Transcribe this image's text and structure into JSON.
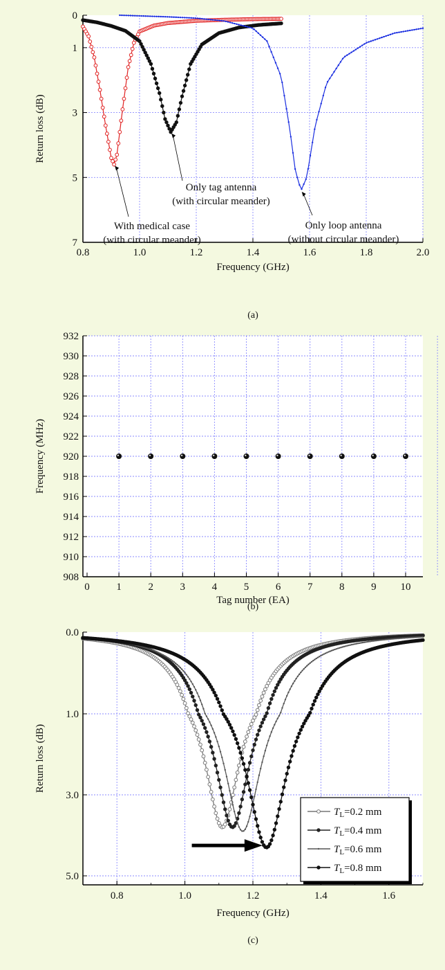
{
  "chart_data": [
    {
      "type": "line",
      "caption": "(a)",
      "xlabel": "Frequency (GHz)",
      "ylabel": "Return loss (dB)",
      "xlim": [
        0.8,
        2.0
      ],
      "ylim": [
        0,
        7
      ],
      "y_reversed": true,
      "grid": true,
      "x_ticks": [
        "0.8",
        "1.0",
        "1.2",
        "1.4",
        "1.6",
        "1.8",
        "2.0"
      ],
      "y_ticks": [
        "0",
        "1",
        "3",
        "5",
        "7"
      ],
      "series": [
        {
          "x": [
            0.8,
            0.82,
            0.84,
            0.86,
            0.88,
            0.9,
            0.91,
            0.92,
            0.94,
            0.96,
            0.98,
            1.0,
            1.05,
            1.1,
            1.2,
            1.3,
            1.4,
            1.5
          ],
          "y": [
            0.35,
            0.65,
            1.3,
            2.3,
            3.4,
            4.4,
            4.6,
            4.3,
            2.9,
            1.6,
            0.85,
            0.5,
            0.32,
            0.24,
            0.17,
            0.14,
            0.12,
            0.11
          ],
          "color": "#e02020",
          "marker": "open-circle"
        },
        {
          "x": [
            0.8,
            0.85,
            0.9,
            0.95,
            1.0,
            1.04,
            1.07,
            1.09,
            1.11,
            1.13,
            1.15,
            1.18,
            1.22,
            1.28,
            1.35,
            1.42,
            1.5
          ],
          "y": [
            0.15,
            0.22,
            0.33,
            0.48,
            0.8,
            1.5,
            2.4,
            3.2,
            3.6,
            3.3,
            2.5,
            1.5,
            0.9,
            0.55,
            0.38,
            0.3,
            0.25
          ],
          "color": "#111111",
          "marker": "filled-circle"
        },
        {
          "x": [
            0.93,
            1.0,
            1.1,
            1.2,
            1.3,
            1.4,
            1.45,
            1.5,
            1.53,
            1.55,
            1.57,
            1.59,
            1.62,
            1.66,
            1.72,
            1.8,
            1.9,
            2.0
          ],
          "y": [
            0.0,
            0.02,
            0.05,
            0.09,
            0.18,
            0.4,
            0.8,
            1.9,
            3.5,
            4.8,
            5.4,
            5.0,
            3.4,
            2.1,
            1.3,
            0.85,
            0.55,
            0.4
          ],
          "color": "#1a2ee0",
          "marker": "small"
        }
      ],
      "annotations": [
        {
          "lines": [
            "Only tag antenna",
            "(with circular meander)"
          ],
          "target": [
            1.11,
            3.6
          ]
        },
        {
          "lines": [
            "With medical case",
            "(with circular meander)"
          ],
          "target": [
            0.91,
            4.6
          ]
        },
        {
          "lines": [
            "Only loop antenna",
            "(without circular meander)"
          ],
          "target": [
            1.57,
            5.4
          ]
        }
      ]
    },
    {
      "type": "scatter",
      "caption": "(b)",
      "xlabel": "Tag number (EA)",
      "ylabel": "Frequency (MHz)",
      "xlim": [
        0,
        11
      ],
      "ylim": [
        908,
        932
      ],
      "grid": true,
      "x_ticks": [
        "0",
        "1",
        "2",
        "3",
        "4",
        "5",
        "6",
        "7",
        "8",
        "9",
        "10"
      ],
      "y_ticks": [
        "908",
        "910",
        "912",
        "914",
        "916",
        "918",
        "920",
        "922",
        "924",
        "926",
        "928",
        "930",
        "932"
      ],
      "x": [
        1,
        2,
        3,
        4,
        5,
        6,
        7,
        8,
        9,
        10
      ],
      "y": [
        920,
        920,
        920,
        920,
        920,
        920,
        920,
        920,
        920,
        920
      ]
    },
    {
      "type": "line",
      "caption": "(c)",
      "xlabel": "Frequency (GHz)",
      "ylabel": "Return loss (dB)",
      "xlim": [
        0.7,
        1.7
      ],
      "ylim": [
        0,
        6
      ],
      "y_reversed": true,
      "grid": true,
      "x_ticks": [
        "0.8",
        "1.0",
        "1.2",
        "1.4",
        "1.6"
      ],
      "y_ticks": [
        "0.0",
        "1.0",
        "3.0",
        "5.0"
      ],
      "series": [
        {
          "name_base": "T",
          "name_sub": "L",
          "name_tail": "=0.2 mm",
          "center": 1.11,
          "min": 3.8,
          "width": 0.06,
          "marker": "open-circle",
          "color": "#777777"
        },
        {
          "name_base": "T",
          "name_sub": "L",
          "name_tail": "=0.4 mm",
          "center": 1.14,
          "min": 3.8,
          "width": 0.06,
          "marker": "filled-circle",
          "color": "#222222"
        },
        {
          "name_base": "T",
          "name_sub": "L",
          "name_tail": "=0.6 mm",
          "center": 1.17,
          "min": 3.9,
          "width": 0.065,
          "marker": "small",
          "color": "#555555"
        },
        {
          "name_base": "T",
          "name_sub": "L",
          "name_tail": "=0.8 mm",
          "center": 1.24,
          "min": 4.3,
          "width": 0.07,
          "marker": "filled-circle",
          "color": "#111111"
        }
      ],
      "arrow": {
        "from": [
          1.0,
          4.25
        ],
        "to": [
          1.22,
          4.25
        ]
      }
    }
  ]
}
